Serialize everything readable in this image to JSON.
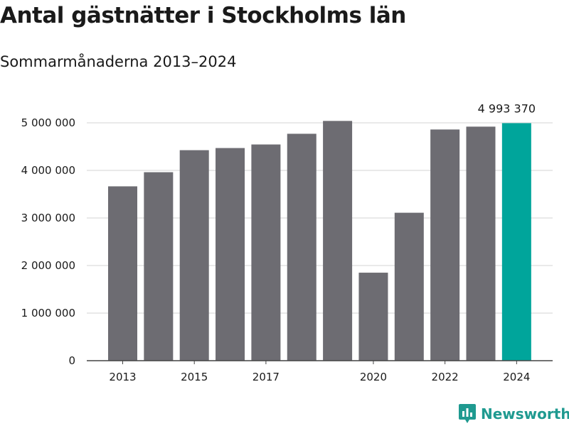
{
  "title": "Antal gästnätter i Stockholms län",
  "subtitle": "Sommarmånaderna 2013–2024",
  "brand": "Newsworthy",
  "colors": {
    "bar": "#6d6c72",
    "highlight": "#00a59b",
    "grid": "#dcdcdc",
    "axis": "#444444"
  },
  "chart_data": {
    "type": "bar",
    "categories": [
      "2013",
      "2014",
      "2015",
      "2016",
      "2017",
      "2018",
      "2019",
      "2020",
      "2021",
      "2022",
      "2023",
      "2024"
    ],
    "values": [
      3665000,
      3962000,
      4425000,
      4470000,
      4545000,
      4770000,
      5040000,
      1850000,
      3110000,
      4860000,
      4920000,
      4993370
    ],
    "x_tick_labels": [
      "2013",
      "",
      "2015",
      "",
      "2017",
      "",
      "",
      "2020",
      "",
      "2022",
      "",
      "2024"
    ],
    "y_ticks": [
      0,
      1000000,
      2000000,
      3000000,
      4000000,
      5000000
    ],
    "y_tick_labels": [
      "0",
      "1 000 000",
      "2 000 000",
      "3 000 000",
      "4 000 000",
      "5 000 000"
    ],
    "ylim": [
      0,
      5000000
    ],
    "highlight_index": 11,
    "annotation": {
      "index": 11,
      "text": "4 993 370"
    },
    "grid": true
  }
}
